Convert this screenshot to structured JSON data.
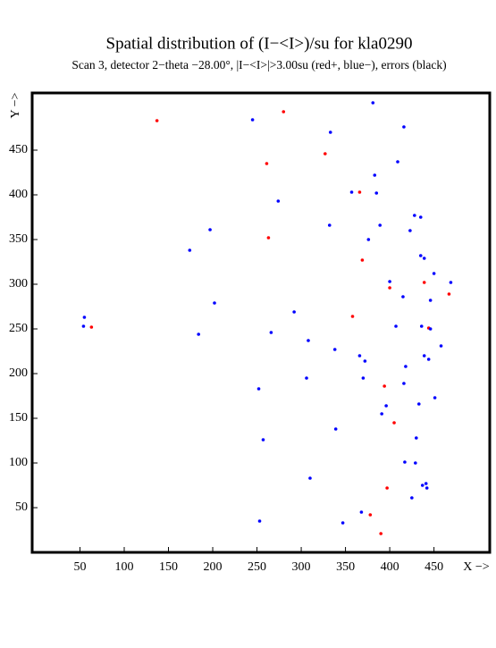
{
  "chart_data": {
    "type": "scatter",
    "title": "Spatial distribution of (I−<I>)/su for kla0290",
    "subtitle": "Scan  3, detector 2−theta −28.00°, |I−<I>|>3.00su (red+, blue−), errors (black)",
    "x_label": "X −>",
    "y_label": "Y −>",
    "xlim": [
      -4,
      513
    ],
    "ylim": [
      0,
      514
    ],
    "xticks": [
      50,
      100,
      150,
      200,
      250,
      300,
      350,
      400,
      450
    ],
    "yticks": [
      50,
      100,
      150,
      200,
      250,
      300,
      350,
      400,
      450
    ],
    "series": [
      {
        "color": "#ff0000",
        "x": [
          137,
          280,
          261,
          327,
          366,
          263,
          369,
          439,
          400,
          467,
          358,
          63,
          444,
          394,
          405,
          397,
          378,
          390
        ],
        "values": [
          483,
          493,
          435,
          446,
          403,
          352,
          327,
          302,
          296,
          289,
          264,
          252,
          251,
          186,
          145,
          72,
          42,
          21
        ]
      },
      {
        "color": "#0000ff",
        "x": [
          381,
          245,
          416,
          333,
          409,
          383,
          274,
          357,
          385,
          428,
          435,
          197,
          332,
          389,
          423,
          376,
          174,
          435,
          439,
          450,
          400,
          469,
          415,
          446,
          202,
          292,
          55,
          54,
          407,
          436,
          446,
          266,
          184,
          308,
          458,
          338,
          366,
          439,
          372,
          444,
          418,
          306,
          370,
          416,
          252,
          451,
          433,
          396,
          391,
          339,
          430,
          257,
          417,
          429,
          310,
          437,
          441,
          442,
          425,
          368,
          253,
          347
        ],
        "values": [
          503,
          484,
          476,
          470,
          437,
          422,
          393,
          403,
          402,
          377,
          375,
          361,
          366,
          366,
          360,
          350,
          338,
          332,
          329,
          312,
          303,
          302,
          286,
          282,
          279,
          269,
          263,
          253,
          253,
          253,
          250,
          246,
          244,
          237,
          231,
          227,
          220,
          220,
          214,
          216,
          208,
          195,
          195,
          189,
          183,
          173,
          166,
          164,
          155,
          138,
          128,
          126,
          101,
          100,
          83,
          75,
          77,
          72,
          61,
          45,
          35,
          33
        ]
      }
    ]
  }
}
